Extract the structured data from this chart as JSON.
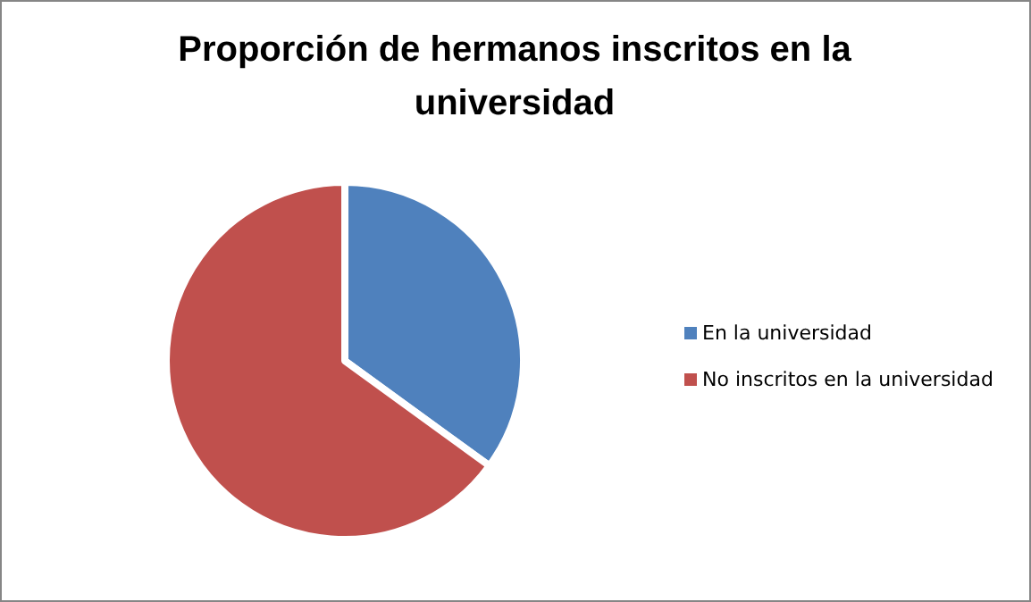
{
  "chart_data": {
    "type": "pie",
    "title": "Proporción de hermanos inscritos en la universidad",
    "categories": [
      "En la universidad",
      "No inscritos en la universidad"
    ],
    "values": [
      35,
      65
    ],
    "colors": [
      "#4f81bd",
      "#c0504d"
    ],
    "legend": "right"
  }
}
